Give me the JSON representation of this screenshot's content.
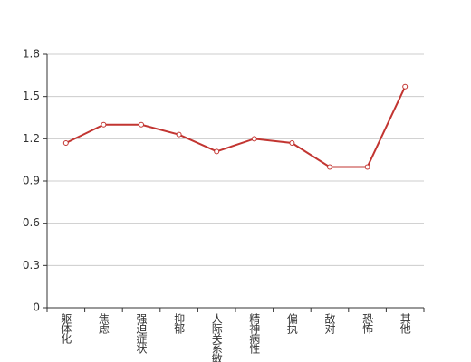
{
  "chart_data": {
    "type": "line",
    "categories": [
      "躯体化",
      "焦虑",
      "强迫症状",
      "抑郁",
      "人际关系敏感",
      "精神病性",
      "偏执",
      "敌对",
      "恐怖",
      "其他"
    ],
    "values": [
      1.17,
      1.3,
      1.3,
      1.23,
      1.11,
      1.2,
      1.17,
      1.0,
      1.0,
      1.57
    ],
    "color": "#c23531",
    "ylim": [
      0,
      1.8
    ],
    "yticks": [
      0,
      0.3,
      0.6,
      0.9,
      1.2,
      1.5,
      1.8
    ],
    "grid": true
  }
}
